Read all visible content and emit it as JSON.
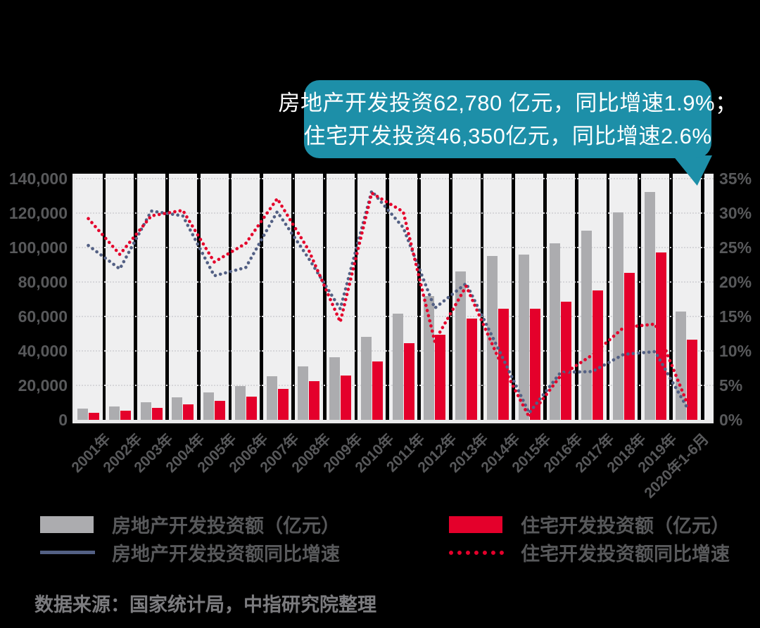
{
  "callout": {
    "line1": "房地产开发投资62,780 亿元，同比增速1.9%；",
    "line2": "住宅开发投资46,350亿元，同比增速2.6%"
  },
  "colors": {
    "callout_teal": "#1D8FA8",
    "bar_total_gray": "#ACACAF",
    "bar_residential_red": "#E4002B",
    "line_total_blue": "#536084",
    "line_residential_red": "#E4002B",
    "plot_stripe": "#EFEFF0",
    "axis_text": "#58595B"
  },
  "chart_data": {
    "type": "bar",
    "subtype": "bar+line combo, dual axis",
    "categories": [
      "2001年",
      "2002年",
      "2003年",
      "2004年",
      "2005年",
      "2006年",
      "2007年",
      "2008年",
      "2009年",
      "2010年",
      "2011年",
      "2012年",
      "2013年",
      "2014年",
      "2015年",
      "2016年",
      "2017年",
      "2018年",
      "2019年",
      "2020年1-6月"
    ],
    "series": [
      {
        "name": "房地产开发投资额（亿元）",
        "type": "bar",
        "axis": "left",
        "color": "#ACACAF",
        "values": [
          6344,
          7791,
          10154,
          13158,
          15909,
          19423,
          25289,
          31203,
          36242,
          48267,
          61740,
          71804,
          86013,
          95036,
          95979,
          102581,
          109799,
          120264,
          132194,
          62780
        ]
      },
      {
        "name": "住宅开发投资额（亿元）",
        "type": "bar",
        "axis": "left",
        "color": "#E4002B",
        "values": [
          4217,
          5228,
          6777,
          8837,
          10861,
          13638,
          18010,
          22441,
          25619,
          34038,
          44308,
          49374,
          58951,
          64352,
          64595,
          68704,
          75148,
          85192,
          97071,
          46350
        ]
      },
      {
        "name": "房地产开发投资额同比增速",
        "type": "line",
        "style": "dotted",
        "axis": "right",
        "color": "#536084",
        "values": [
          25.3,
          21.9,
          30.3,
          29.6,
          20.9,
          22.1,
          30.2,
          23.4,
          16.1,
          33.2,
          27.9,
          16.2,
          19.8,
          10.5,
          1.0,
          6.9,
          7.0,
          9.5,
          9.9,
          1.9
        ]
      },
      {
        "name": "住宅开发投资额同比增速",
        "type": "line",
        "style": "dotted",
        "axis": "right",
        "color": "#E4002B",
        "values": [
          29.2,
          24.0,
          29.6,
          30.4,
          22.9,
          25.6,
          32.1,
          24.6,
          14.2,
          32.9,
          30.2,
          11.4,
          19.4,
          9.2,
          0.4,
          6.4,
          9.4,
          13.4,
          13.9,
          2.6
        ]
      }
    ],
    "left_axis": {
      "min": 0,
      "max": 140000,
      "step": 20000,
      "ticks": [
        "140,000",
        "120,000",
        "100,000",
        "80,000",
        "60,000",
        "40,000",
        "20,000",
        "0"
      ],
      "unit": "亿元"
    },
    "right_axis": {
      "min": 0,
      "max": 35,
      "step": 5,
      "ticks": [
        "35%",
        "30%",
        "25%",
        "20%",
        "15%",
        "10%",
        "5%",
        "0%"
      ],
      "unit": "%"
    },
    "grid": "horizontal dotted",
    "legend_position": "bottom",
    "title": ""
  },
  "legend": {
    "items": [
      {
        "label": "房地产开发投资额（亿元）",
        "swatch": "gray-bar"
      },
      {
        "label": "住宅开发投资额（亿元）",
        "swatch": "red-bar"
      },
      {
        "label": "房地产开发投资额同比增速",
        "swatch": "blue-line"
      },
      {
        "label": "住宅开发投资额同比增速",
        "swatch": "red-dotted-line"
      }
    ]
  },
  "source": "数据来源：国家统计局，中指研究院整理"
}
